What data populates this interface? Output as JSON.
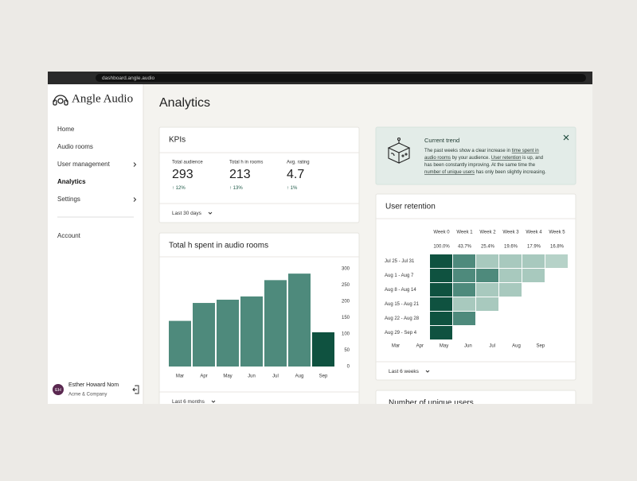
{
  "browser": {
    "url": "dashboard.angle.audio"
  },
  "sidebar": {
    "brand": "Angle Audio",
    "nav": [
      {
        "label": "Home"
      },
      {
        "label": "Audio rooms"
      },
      {
        "label": "User management",
        "submenu": true
      },
      {
        "label": "Analytics",
        "active": true
      },
      {
        "label": "Settings",
        "submenu": true
      }
    ],
    "secondary": [
      "Account"
    ],
    "user": {
      "initials": "EH",
      "name": "Esther Howard Nom",
      "company": "Acme & Company"
    }
  },
  "page": {
    "title": "Analytics"
  },
  "kpis": {
    "title": "KPIs",
    "items": [
      {
        "label": "Total audience",
        "value": 293,
        "change": "↑ 12%"
      },
      {
        "label": "Total h in rooms",
        "value": 213,
        "change": "↑ 13%"
      },
      {
        "label": "Avg. rating",
        "value": 4.7,
        "change": "↑ 1%"
      }
    ],
    "period": "Last 30 days"
  },
  "hours_chart": {
    "type": "bar",
    "title": "Total h spent in audio rooms",
    "categories": [
      "Mar",
      "Apr",
      "May",
      "Jun",
      "Jul",
      "Aug",
      "Sep"
    ],
    "values": [
      140,
      195,
      205,
      215,
      265,
      285,
      105
    ],
    "colors": [
      "#4e8a7c",
      "#4e8a7c",
      "#4e8a7c",
      "#4e8a7c",
      "#4e8a7c",
      "#4e8a7c",
      "#0f5240"
    ],
    "ylim": [
      0,
      300
    ],
    "yticks": [
      0,
      50,
      100,
      150,
      200,
      250,
      300
    ],
    "period": "Last 6 months"
  },
  "trend": {
    "title": "Current trend",
    "lines": [
      [
        {
          "text": "The past weeks show a clear increase in "
        },
        {
          "text": "time spent in",
          "link": true
        }
      ],
      [
        {
          "text": "audio rooms",
          "link": true
        },
        {
          "text": " by your audience. "
        },
        {
          "text": "User retention",
          "link": true
        },
        {
          "text": " is up, and"
        }
      ],
      [
        {
          "text": "has been constantly improving. At the same time the"
        }
      ],
      [
        {
          "text": "number of unique users",
          "link": true
        },
        {
          "text": " has only been slightly increasing."
        }
      ]
    ]
  },
  "retention": {
    "title": "User retention",
    "columns": [
      "Week 0",
      "Week 1",
      "Week 2",
      "Week 3",
      "Week 4",
      "Week 5"
    ],
    "column_rates": [
      "100.0%",
      "43.7%",
      "25.4%",
      "19.6%",
      "17.9%",
      "16.8%"
    ],
    "rows": [
      {
        "label": "Jul 25 - Jul 31",
        "cells": [
          "#0f5240",
          "#4e8a7c",
          "#a8c9be",
          "#a8c9be",
          "#a8c9be",
          "#b6d2c8"
        ]
      },
      {
        "label": "Aug 1 - Aug 7",
        "cells": [
          "#0f5240",
          "#4e8a7c",
          "#4e8a7c",
          "#a8c9be",
          "#a8c9be"
        ]
      },
      {
        "label": "Aug 8 - Aug 14",
        "cells": [
          "#0f5240",
          "#4e8a7c",
          "#a8c9be",
          "#a8c9be"
        ]
      },
      {
        "label": "Aug 15 - Aug 21",
        "cells": [
          "#0f5240",
          "#a8c9be",
          "#a8c9be"
        ]
      },
      {
        "label": "Aug 22 - Aug 28",
        "cells": [
          "#0f5240",
          "#4e8a7c"
        ]
      },
      {
        "label": "Aug 29 - Sep 4",
        "cells": [
          "#0f5240"
        ]
      }
    ],
    "months": [
      "Mar",
      "Apr",
      "May",
      "Jun",
      "Jul",
      "Aug",
      "Sep"
    ],
    "period": "Last 6 weeks"
  },
  "unique_users": {
    "title": "Number of unique users"
  }
}
